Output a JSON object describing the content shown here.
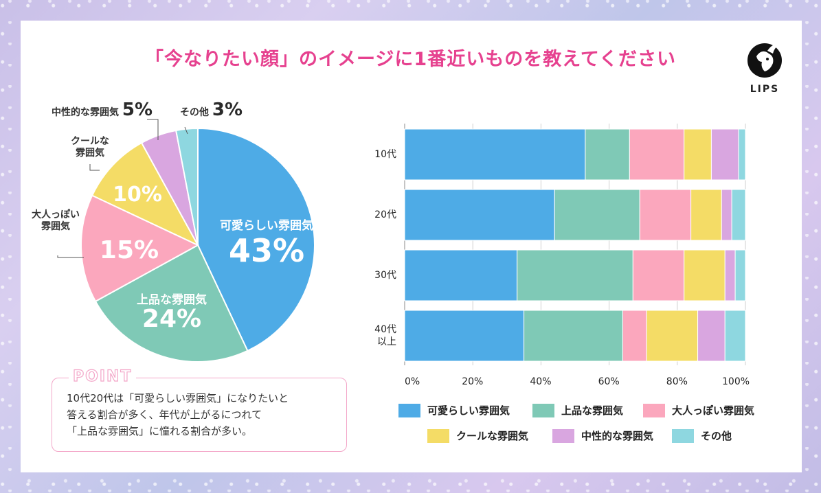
{
  "title": "「今なりたい顔」のイメージに1番近いものを教えてください",
  "brand": "LIPS",
  "pie": {
    "labels": [
      {
        "name": "可愛らしい雰囲気",
        "pct": "43%"
      },
      {
        "name": "上品な雰囲気",
        "pct": "24%"
      },
      {
        "name": "大人っぽい\n雰囲気",
        "pct": "15%"
      },
      {
        "name": "クールな\n雰囲気",
        "pct": "10%"
      },
      {
        "name": "中性的な雰囲気",
        "pct": "5%"
      },
      {
        "name": "その他",
        "pct": "3%"
      }
    ]
  },
  "point": {
    "tag": "POINT",
    "lines": [
      "10代20代は「可愛らしい雰囲気」になりたいと",
      "答える割合が多く、年代が上がるにつれて",
      "「上品な雰囲気」に憧れる割合が多い。"
    ]
  },
  "colors": {
    "cute": "#4eabe6",
    "elegant": "#7fc9b6",
    "mature": "#fba7bd",
    "cool": "#f4dc66",
    "neutral": "#d9a6e0",
    "other": "#8ed7e0"
  },
  "chart_data": [
    {
      "type": "pie",
      "categories": [
        "可愛らしい雰囲気",
        "上品な雰囲気",
        "大人っぽい雰囲気",
        "クールな雰囲気",
        "中性的な雰囲気",
        "その他"
      ],
      "values": [
        43,
        24,
        15,
        10,
        5,
        3
      ],
      "unit": "%"
    },
    {
      "type": "bar",
      "orientation": "horizontal",
      "stacked": true,
      "categories": [
        "10代",
        "20代",
        "30代",
        "40代\n以上"
      ],
      "x_ticks": [
        "0%",
        "20%",
        "40%",
        "60%",
        "80%",
        "100%"
      ],
      "xlim": [
        0,
        100
      ],
      "grid": true,
      "series": [
        {
          "name": "可愛らしい雰囲気",
          "key": "cute",
          "values": [
            53,
            44,
            33,
            35
          ]
        },
        {
          "name": "上品な雰囲気",
          "key": "elegant",
          "values": [
            13,
            25,
            34,
            29
          ]
        },
        {
          "name": "大人っぽい雰囲気",
          "key": "mature",
          "values": [
            16,
            15,
            15,
            7
          ]
        },
        {
          "name": "クールな雰囲気",
          "key": "cool",
          "values": [
            8,
            9,
            12,
            15
          ]
        },
        {
          "name": "中性的な雰囲気",
          "key": "neutral",
          "values": [
            8,
            3,
            3,
            8
          ]
        },
        {
          "name": "その他",
          "key": "other",
          "values": [
            2,
            4,
            3,
            6
          ]
        }
      ],
      "legend": "bottom"
    }
  ]
}
